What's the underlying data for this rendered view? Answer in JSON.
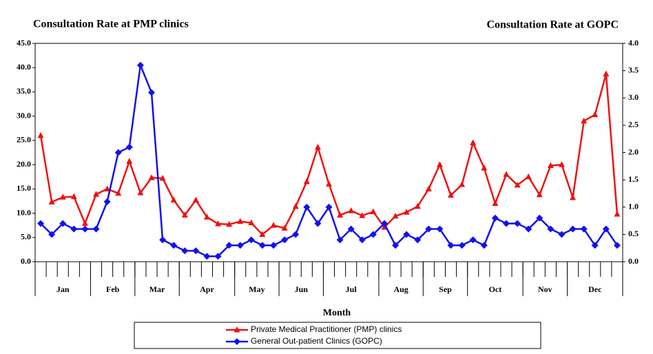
{
  "chart_data": {
    "type": "line",
    "title": "Consultation Rate at PMP clinics",
    "title_right": "Consultation Rate at GOPC",
    "x_label": "Month",
    "categories": [
      "Jan",
      "Jan",
      "Jan",
      "Jan",
      "Jan",
      "Feb",
      "Feb",
      "Feb",
      "Feb",
      "Mar",
      "Mar",
      "Mar",
      "Mar",
      "Apr",
      "Apr",
      "Apr",
      "Apr",
      "Apr",
      "May",
      "May",
      "May",
      "May",
      "Jun",
      "Jun",
      "Jun",
      "Jun",
      "Jul",
      "Jul",
      "Jul",
      "Jul",
      "Jul",
      "Aug",
      "Aug",
      "Aug",
      "Aug",
      "Sep",
      "Sep",
      "Sep",
      "Sep",
      "Oct",
      "Oct",
      "Oct",
      "Oct",
      "Oct",
      "Nov",
      "Nov",
      "Nov",
      "Nov",
      "Dec",
      "Dec",
      "Dec",
      "Dec",
      "Dec"
    ],
    "series": [
      {
        "name": "Private Medical Practitioner (PMP) clinics",
        "color": "#ee1111",
        "marker": "triangle",
        "values": [
          26.0,
          12.3,
          13.3,
          13.4,
          7.9,
          13.9,
          15.0,
          14.1,
          20.7,
          14.2,
          17.3,
          17.2,
          12.7,
          9.6,
          12.7,
          9.2,
          7.8,
          7.7,
          8.3,
          8.0,
          5.6,
          7.5,
          6.9,
          11.4,
          16.5,
          23.6,
          16.0,
          9.6,
          10.5,
          9.5,
          10.3,
          7.1,
          9.4,
          10.2,
          11.4,
          15.0,
          20.0,
          13.7,
          15.9,
          24.5,
          19.3,
          12.0,
          18.0,
          15.8,
          17.5,
          13.8,
          19.8,
          20.0,
          13.2,
          29.0,
          30.3,
          38.7,
          9.8
        ]
      },
      {
        "name": "General Out-patient Clinics (GOPC)",
        "color": "#1111ee",
        "marker": "diamond",
        "axis": "y2",
        "values": [
          0.7,
          0.5,
          0.7,
          0.6,
          0.6,
          0.6,
          1.1,
          2.0,
          2.1,
          3.6,
          3.1,
          0.4,
          0.3,
          0.2,
          0.2,
          0.1,
          0.1,
          0.3,
          0.3,
          0.4,
          0.3,
          0.3,
          0.4,
          0.5,
          1.0,
          0.7,
          1.0,
          0.4,
          0.6,
          0.4,
          0.5,
          0.7,
          0.3,
          0.5,
          0.4,
          0.6,
          0.6,
          0.3,
          0.3,
          0.4,
          0.3,
          0.8,
          0.7,
          0.7,
          0.6,
          0.8,
          0.6,
          0.5,
          0.6,
          0.6,
          0.3,
          0.6,
          0.3
        ]
      }
    ],
    "ylim": [
      0,
      45
    ],
    "yticks": [
      {
        "value": 0,
        "label": "0.0"
      },
      {
        "value": 5,
        "label": "5.0"
      },
      {
        "value": 10,
        "label": "10.0"
      },
      {
        "value": 15,
        "label": "15.0"
      },
      {
        "value": 20,
        "label": "20.0"
      },
      {
        "value": 25,
        "label": "25.0"
      },
      {
        "value": 30,
        "label": "30.0"
      },
      {
        "value": 35,
        "label": "35.0"
      },
      {
        "value": 40,
        "label": "40.0"
      },
      {
        "value": 45,
        "label": "45.0"
      }
    ],
    "y2lim": [
      0,
      4
    ],
    "y2ticks": [
      {
        "value": 0,
        "label": "0.0"
      },
      {
        "value": 0.5,
        "label": "0.5"
      },
      {
        "value": 1,
        "label": "1.0"
      },
      {
        "value": 1.5,
        "label": "1.5"
      },
      {
        "value": 2,
        "label": "2.0"
      },
      {
        "value": 2.5,
        "label": "2.5"
      },
      {
        "value": 3,
        "label": "3.0"
      },
      {
        "value": 3.5,
        "label": "3.5"
      },
      {
        "value": 4,
        "label": "4.0"
      }
    ],
    "legend": "bottom"
  }
}
